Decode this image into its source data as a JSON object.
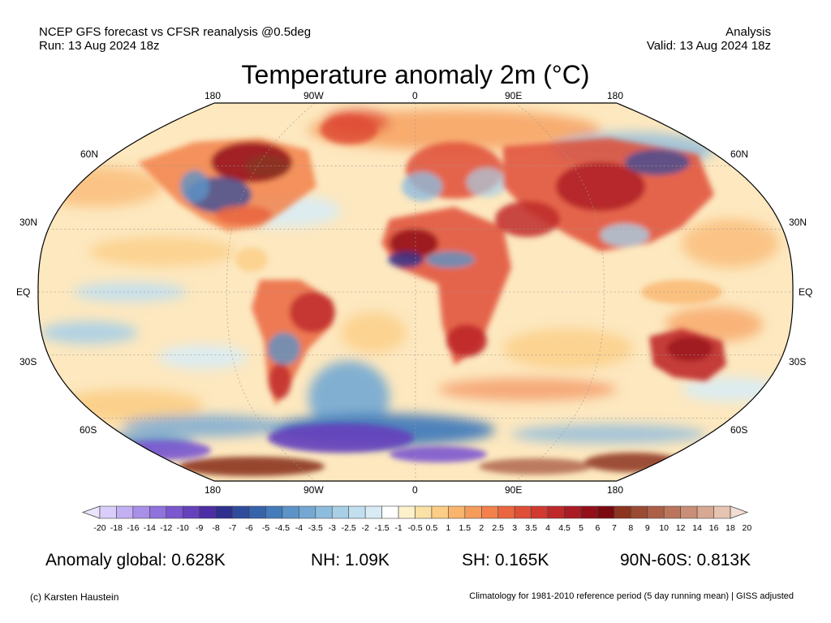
{
  "header": {
    "line1_left": "NCEP GFS forecast vs CFSR reanalysis @0.5deg",
    "line2_left": "Run: 13 Aug 2024 18z",
    "line1_right": "Analysis",
    "line2_right": "Valid: 13 Aug 2024 18z"
  },
  "title": "Temperature anomaly 2m (°C)",
  "map": {
    "projection": "Robinson",
    "lon_labels_top": [
      "180",
      "90W",
      "0",
      "90E",
      "180"
    ],
    "lon_labels_bottom": [
      "180",
      "90W",
      "0",
      "90E",
      "180"
    ],
    "lat_labels_left": [
      "60N",
      "30N",
      "EQ",
      "30S",
      "60S"
    ],
    "lat_labels_right": [
      "60N",
      "30N",
      "EQ",
      "30S",
      "60S"
    ]
  },
  "colorbar": {
    "ticks": [
      "-20",
      "-18",
      "-16",
      "-14",
      "-12",
      "-10",
      "-9",
      "-8",
      "-7",
      "-6",
      "-5",
      "-4.5",
      "-4",
      "-3.5",
      "-3",
      "-2.5",
      "-2",
      "-1.5",
      "-1",
      "-0.5",
      "0.5",
      "1",
      "1.5",
      "2",
      "2.5",
      "3",
      "3.5",
      "4",
      "4.5",
      "5",
      "6",
      "7",
      "8",
      "9",
      "10",
      "12",
      "14",
      "16",
      "18",
      "20"
    ],
    "colors": [
      "#d9cdfa",
      "#c2b0f2",
      "#a88fe8",
      "#9072dc",
      "#7b58cf",
      "#6641bd",
      "#4e2ea6",
      "#2e2f8f",
      "#2f4c9c",
      "#3664ab",
      "#447cbb",
      "#5c94c8",
      "#74a8d3",
      "#8ebcdd",
      "#a8cfe6",
      "#c1dfee",
      "#d9ecf5",
      "#ffffff",
      "#fdf1cc",
      "#fce1a6",
      "#fbcd86",
      "#f9b56e",
      "#f69c5b",
      "#f2814b",
      "#ea6640",
      "#df4e37",
      "#d03a30",
      "#bf292a",
      "#ab1b23",
      "#93101b",
      "#7a0a10",
      "#8c3420",
      "#9b4a33",
      "#ab5f47",
      "#ba765d",
      "#c98e77",
      "#d8a893",
      "#e6c4b1"
    ],
    "under_color": "#ece4fd",
    "over_color": "#f4ddd2"
  },
  "stats": {
    "global": "Anomaly global: 0.628K",
    "nh": "NH: 1.09K",
    "sh": "SH: 0.165K",
    "arctic": "90N-60S: 0.813K"
  },
  "footer": {
    "credit": "(c) Karsten Haustein",
    "note": "Climatology for 1981-2010 reference period (5 day running mean) | GISS adjusted"
  }
}
